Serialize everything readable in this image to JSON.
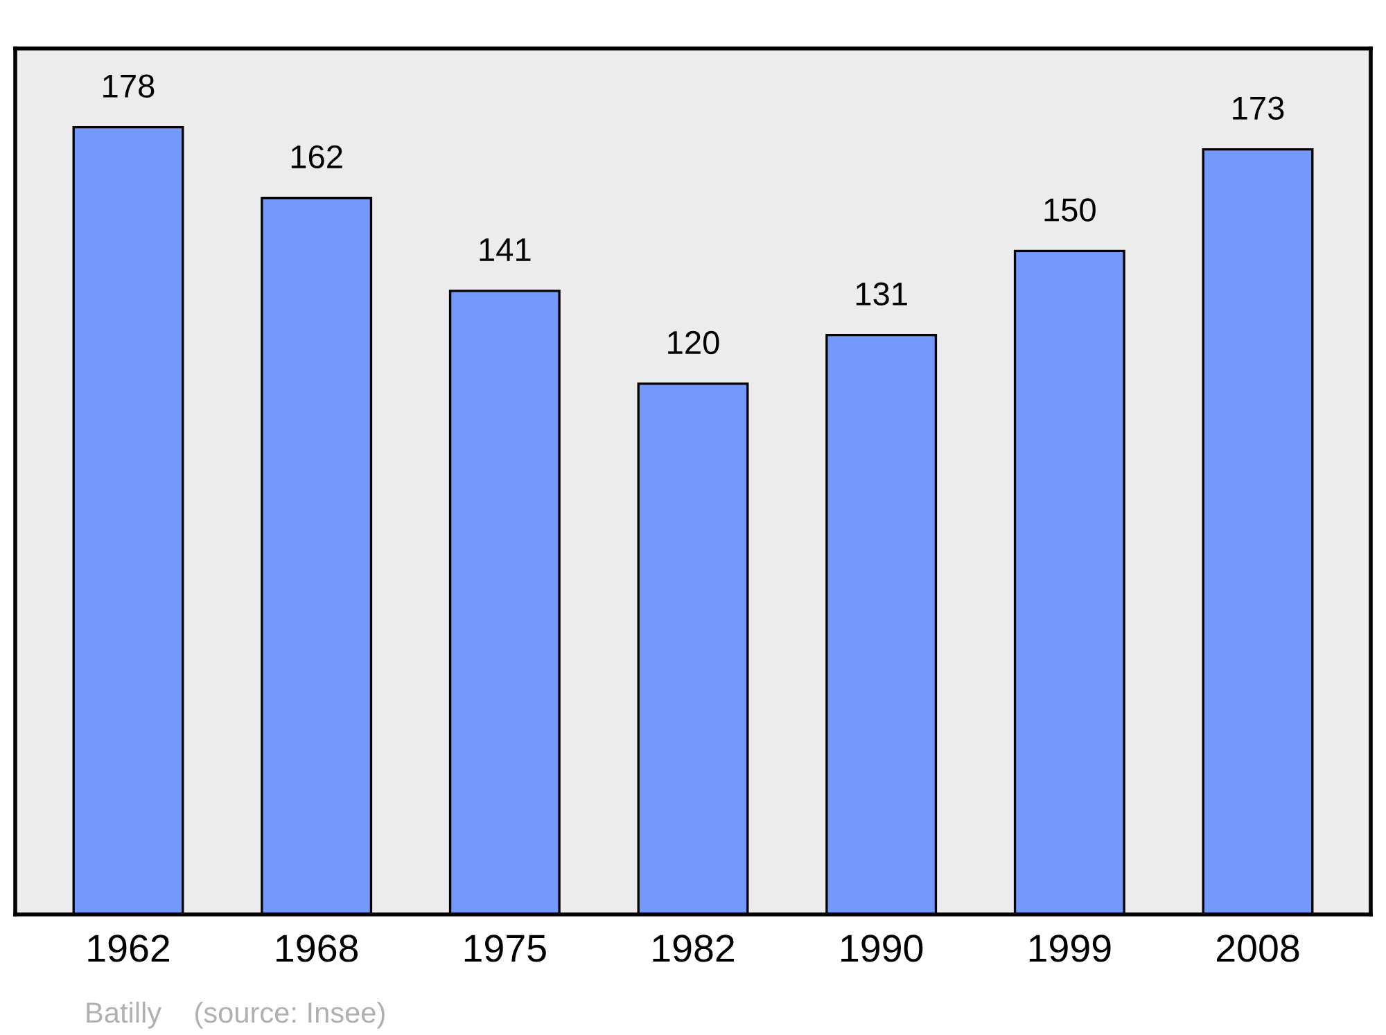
{
  "chart_data": {
    "type": "bar",
    "categories": [
      "1962",
      "1968",
      "1975",
      "1982",
      "1990",
      "1999",
      "2008"
    ],
    "values": [
      178,
      162,
      141,
      120,
      131,
      150,
      173
    ],
    "color": "#7399ff",
    "data_labels": true,
    "grid": false,
    "annotations": [
      "Batilly    (source: Insee)"
    ]
  }
}
